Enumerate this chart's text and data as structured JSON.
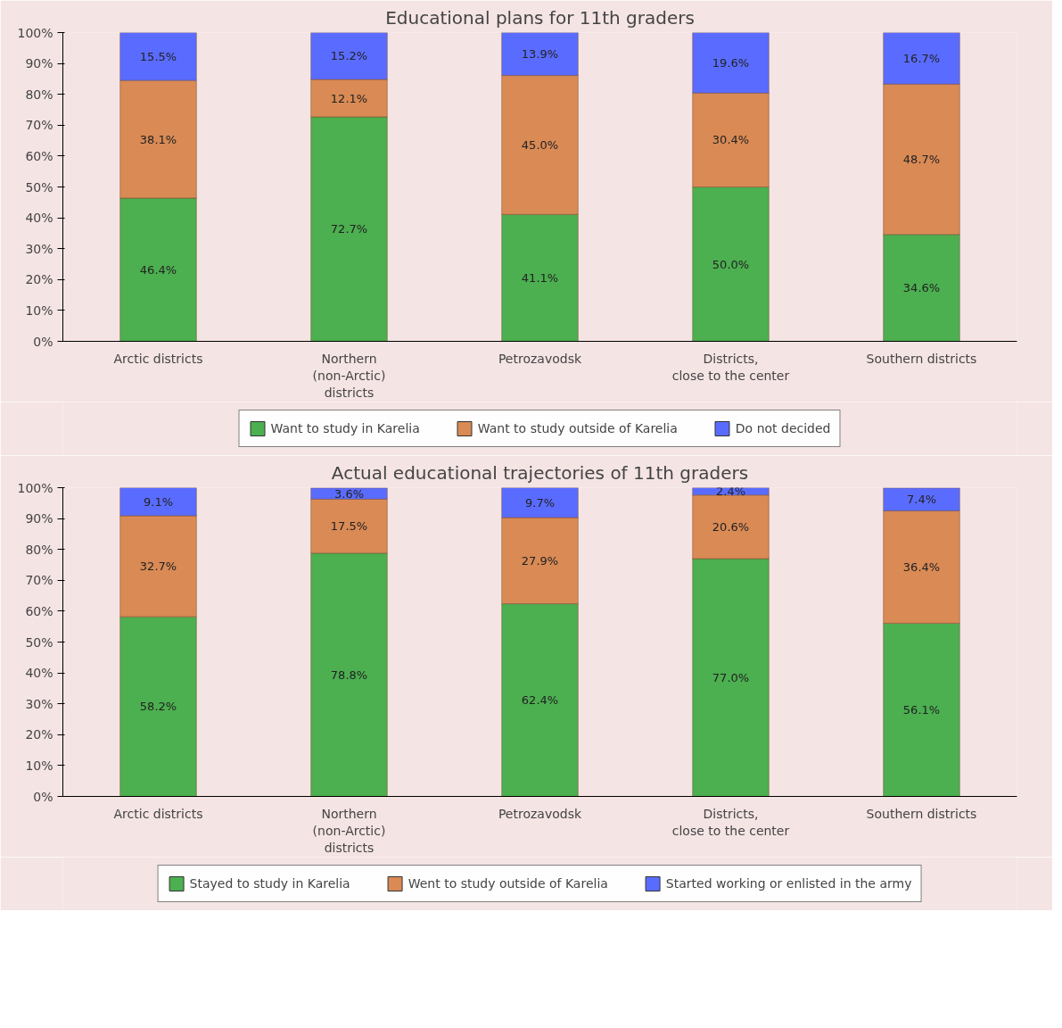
{
  "chart_data": [
    {
      "type": "bar",
      "title": "Educational plans for 11th graders",
      "stacked": true,
      "legend": "bottom",
      "grid": false,
      "categories": [
        "Arctic districts",
        "Northern\n(non-Arctic)\ndistricts",
        "Petrozavodsk",
        "Districts,\nclose to the center",
        "Southern districts"
      ],
      "ylim": [
        0,
        100
      ],
      "yticks": [
        {
          "value": 0,
          "label": "0%"
        },
        {
          "value": 10,
          "label": "10%"
        },
        {
          "value": 20,
          "label": "20%"
        },
        {
          "value": 30,
          "label": "30%"
        },
        {
          "value": 40,
          "label": "40%"
        },
        {
          "value": 50,
          "label": "50%"
        },
        {
          "value": 60,
          "label": "60%"
        },
        {
          "value": 70,
          "label": "70%"
        },
        {
          "value": 80,
          "label": "80%"
        },
        {
          "value": 90,
          "label": "90%"
        },
        {
          "value": 100,
          "label": "100%"
        }
      ],
      "series": [
        {
          "name": "Want to study in Karelia",
          "color": "#4caf50",
          "values": [
            46.4,
            72.7,
            41.1,
            50.0,
            34.6
          ],
          "value_labels": [
            "46.4%",
            "72.7%",
            "41.1%",
            "50.0%",
            "34.6%"
          ]
        },
        {
          "name": "Want to study outside of Karelia",
          "color": "#d98a55",
          "values": [
            38.1,
            12.1,
            45.0,
            30.4,
            48.7
          ],
          "value_labels": [
            "38.1%",
            "12.1%",
            "45.0%",
            "30.4%",
            "48.7%"
          ]
        },
        {
          "name": "Do not decided",
          "color": "#5a6cff",
          "values": [
            15.5,
            15.2,
            13.9,
            19.6,
            16.7
          ],
          "value_labels": [
            "15.5%",
            "15.2%",
            "13.9%",
            "19.6%",
            "16.7%"
          ]
        }
      ]
    },
    {
      "type": "bar",
      "title": "Actual educational trajectories of 11th graders",
      "stacked": true,
      "legend": "bottom",
      "grid": false,
      "categories": [
        "Arctic districts",
        "Northern\n(non-Arctic)\ndistricts",
        "Petrozavodsk",
        "Districts,\nclose to the center",
        "Southern districts"
      ],
      "ylim": [
        0,
        100
      ],
      "yticks": [
        {
          "value": 0,
          "label": "0%"
        },
        {
          "value": 10,
          "label": "10%"
        },
        {
          "value": 20,
          "label": "20%"
        },
        {
          "value": 30,
          "label": "30%"
        },
        {
          "value": 40,
          "label": "40%"
        },
        {
          "value": 50,
          "label": "50%"
        },
        {
          "value": 60,
          "label": "60%"
        },
        {
          "value": 70,
          "label": "70%"
        },
        {
          "value": 80,
          "label": "80%"
        },
        {
          "value": 90,
          "label": "90%"
        },
        {
          "value": 100,
          "label": "100%"
        }
      ],
      "series": [
        {
          "name": "Stayed to study in Karelia",
          "color": "#4caf50",
          "values": [
            58.2,
            78.8,
            62.4,
            77.0,
            56.1
          ],
          "value_labels": [
            "58.2%",
            "78.8%",
            "62.4%",
            "77.0%",
            "56.1%"
          ]
        },
        {
          "name": "Went to study outside of Karelia",
          "color": "#d98a55",
          "values": [
            32.7,
            17.5,
            27.9,
            20.6,
            36.4
          ],
          "value_labels": [
            "32.7%",
            "17.5%",
            "27.9%",
            "20.6%",
            "36.4%"
          ]
        },
        {
          "name": "Started working or enlisted in the army",
          "color": "#5a6cff",
          "values": [
            9.1,
            3.6,
            9.7,
            2.4,
            7.4
          ],
          "value_labels": [
            "9.1%",
            "3.6%",
            "9.7%",
            "2.4%",
            "7.4%"
          ]
        }
      ]
    }
  ]
}
